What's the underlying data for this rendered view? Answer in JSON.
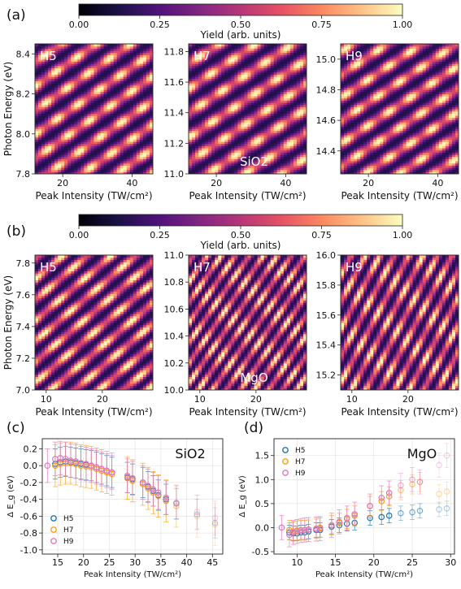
{
  "colors": {
    "H5": "#1f77b4",
    "H7": "#ff9f0e",
    "H9": "#e377c2",
    "colormap": [
      "#000004",
      "#1d1147",
      "#51127c",
      "#822681",
      "#b63679",
      "#e65164",
      "#fb8861",
      "#fec287",
      "#fcfdbf"
    ]
  },
  "chart_data": [
    {
      "id": "a",
      "panel_label": "(a)",
      "type": "heatmap",
      "colorbar": {
        "label": "Yield (arb. units)",
        "ticks": [
          "0.00",
          "0.25",
          "0.50",
          "0.75",
          "1.00"
        ],
        "range": [
          0,
          1
        ],
        "colormap": "magma"
      },
      "material": "SiO2",
      "subplots": [
        {
          "name": "H5",
          "xlim": [
            12,
            46
          ],
          "ylim": [
            7.8,
            8.45
          ],
          "xticks": [
            20,
            40
          ],
          "yticks": [
            7.8,
            8.0,
            8.2,
            8.4
          ],
          "ylabel": "Photon Energy (eV)",
          "xlabel": "Peak Intensity (TW/cm²)",
          "fringes": {
            "start": 7.88,
            "spacing": 0.12,
            "slope": 0.0012
          }
        },
        {
          "name": "H7",
          "xlim": [
            12,
            46
          ],
          "ylim": [
            11.0,
            11.85
          ],
          "xticks": [
            20,
            40
          ],
          "yticks": [
            11.0,
            11.2,
            11.4,
            11.6,
            11.8
          ],
          "xlabel": "Peak Intensity (TW/cm²)",
          "fringes": {
            "start": 11.08,
            "spacing": 0.16,
            "slope": 0.0015
          }
        },
        {
          "name": "H9",
          "xlim": [
            12,
            46
          ],
          "ylim": [
            14.25,
            15.1
          ],
          "xticks": [
            20,
            40
          ],
          "yticks": [
            14.4,
            14.6,
            14.8,
            15.0
          ],
          "xlabel": "Peak Intensity (TW/cm²)",
          "fringes": {
            "start": 14.3,
            "spacing": 0.15,
            "slope": 0.0015
          }
        }
      ]
    },
    {
      "id": "b",
      "panel_label": "(b)",
      "type": "heatmap",
      "colorbar": {
        "label": "Yield (arb. units)",
        "ticks": [
          "0.00",
          "0.25",
          "0.50",
          "0.75",
          "1.00"
        ],
        "range": [
          0,
          1
        ],
        "colormap": "magma"
      },
      "material": "MgO",
      "subplots": [
        {
          "name": "H5",
          "xlim": [
            8,
            29
          ],
          "ylim": [
            7.0,
            7.85
          ],
          "xticks": [
            10,
            20
          ],
          "yticks": [
            7.0,
            7.2,
            7.4,
            7.6,
            7.8
          ],
          "ylabel": "Photon Energy (eV)",
          "xlabel": "Peak Intensity (TW/cm²)",
          "fringes": {
            "start": 7.05,
            "spacing": 0.13,
            "slope": 0.003
          }
        },
        {
          "name": "H7",
          "xlim": [
            8,
            29
          ],
          "ylim": [
            10.0,
            11.0
          ],
          "xticks": [
            10,
            20
          ],
          "yticks": [
            10.0,
            10.2,
            10.4,
            10.6,
            10.8,
            11.0
          ],
          "xlabel": "Peak Intensity (TW/cm²)",
          "fringes": {
            "start": 10.05,
            "spacing": 0.15,
            "slope": 0.006
          }
        },
        {
          "name": "H9",
          "xlim": [
            8,
            29
          ],
          "ylim": [
            15.1,
            16.0
          ],
          "xticks": [
            10,
            20
          ],
          "yticks": [
            15.2,
            15.4,
            15.6,
            15.8,
            16.0
          ],
          "xlabel": "Peak Intensity (TW/cm²)",
          "fringes": {
            "start": 15.15,
            "spacing": 0.18,
            "slope": 0.007
          }
        }
      ]
    },
    {
      "id": "c",
      "panel_label": "(c)",
      "type": "scatter",
      "title": "SiO2",
      "xlabel": "Peak Intensity (TW/cm²)",
      "ylabel": "Δ E_g (eV)",
      "xlim": [
        12,
        47
      ],
      "ylim": [
        -1.05,
        0.32
      ],
      "xticks": [
        15,
        20,
        25,
        30,
        35,
        40,
        45
      ],
      "yticks": [
        -1.0,
        -0.8,
        -0.6,
        -0.4,
        -0.2,
        0.0,
        0.2
      ],
      "grid": true,
      "legend_position": "lower-left",
      "series": [
        {
          "name": "H5",
          "err": 0.18,
          "x": [
            14.5,
            15.5,
            16.5,
            17.5,
            18.5,
            19.5,
            20.5,
            21.5,
            22.5,
            23.5,
            24.5,
            25.5,
            28.5,
            29.5,
            31.5,
            32.5,
            33.5,
            34.5,
            36,
            38,
            42,
            45.5
          ],
          "y": [
            0.02,
            0.04,
            0.05,
            0.04,
            0.03,
            0.02,
            0.01,
            0.0,
            -0.02,
            -0.04,
            -0.06,
            -0.08,
            -0.14,
            -0.16,
            -0.2,
            -0.25,
            -0.3,
            -0.35,
            -0.4,
            -0.45,
            -0.58,
            -0.68
          ]
        },
        {
          "name": "H7",
          "err": 0.25,
          "x": [
            14.5,
            15.5,
            16.5,
            17.5,
            18.5,
            19.5,
            20.5,
            21.5,
            22.5,
            23.5,
            24.5,
            25.5,
            28.5,
            29.5,
            31.5,
            32.5,
            33.5,
            34.5,
            36,
            38,
            42,
            45.5
          ],
          "y": [
            0.0,
            0.02,
            0.03,
            0.03,
            0.02,
            0.0,
            -0.01,
            -0.02,
            -0.04,
            -0.06,
            -0.08,
            -0.1,
            -0.15,
            -0.18,
            -0.22,
            -0.27,
            -0.32,
            -0.36,
            -0.42,
            -0.48,
            -0.6,
            -0.7
          ]
        },
        {
          "name": "H9",
          "err": 0.2,
          "x": [
            13,
            14.5,
            15.5,
            16.5,
            17.5,
            18.5,
            19.5,
            20.5,
            21.5,
            22.5,
            23.5,
            24.5,
            25.5,
            28.5,
            29.5,
            31.5,
            32.5,
            33.5,
            34.5,
            36,
            38,
            42,
            45.5
          ],
          "y": [
            0.0,
            0.08,
            0.09,
            0.08,
            0.06,
            0.05,
            0.03,
            0.02,
            0.0,
            -0.02,
            -0.04,
            -0.06,
            -0.08,
            -0.12,
            -0.15,
            -0.2,
            -0.24,
            -0.28,
            -0.32,
            -0.38,
            -0.44,
            -0.55,
            -0.62
          ]
        }
      ]
    },
    {
      "id": "d",
      "panel_label": "(d)",
      "type": "scatter",
      "title": "MgO",
      "xlabel": "Peak Intensity (TW/cm²)",
      "ylabel": "Δ E_g (eV)",
      "xlim": [
        7,
        30.5
      ],
      "ylim": [
        -0.55,
        1.85
      ],
      "xticks": [
        10,
        15,
        20,
        25,
        30
      ],
      "yticks": [
        -0.5,
        0.0,
        0.5,
        1.0,
        1.5
      ],
      "grid": true,
      "legend_position": "upper-left",
      "series": [
        {
          "name": "H5",
          "err": 0.15,
          "x": [
            9,
            9.5,
            10,
            10.5,
            11,
            11.5,
            12.5,
            13,
            14.5,
            15.5,
            16.5,
            17.5,
            19.5,
            21,
            22,
            23.5,
            25,
            26,
            28.5,
            29.5
          ],
          "y": [
            -0.1,
            -0.12,
            -0.12,
            -0.1,
            -0.1,
            -0.08,
            -0.05,
            -0.05,
            0.02,
            0.05,
            0.08,
            0.1,
            0.2,
            0.22,
            0.25,
            0.3,
            0.32,
            0.35,
            0.38,
            0.4
          ]
        },
        {
          "name": "H7",
          "err": 0.2,
          "x": [
            9,
            9.5,
            10,
            10.5,
            11,
            11.5,
            12.5,
            13,
            14.5,
            15.5,
            16.5,
            17.5,
            19.5,
            21,
            22,
            23.5,
            25,
            26,
            28.5,
            29.5
          ],
          "y": [
            -0.05,
            -0.08,
            -0.06,
            -0.05,
            -0.05,
            -0.04,
            -0.02,
            0.0,
            0.05,
            0.1,
            0.18,
            0.25,
            0.45,
            0.55,
            0.65,
            0.78,
            0.9,
            0.95,
            0.7,
            0.75
          ]
        },
        {
          "name": "H9",
          "err": 0.25,
          "x": [
            8,
            9,
            9.5,
            10,
            10.5,
            11,
            11.5,
            12.5,
            13,
            14.5,
            15.5,
            16.5,
            17.5,
            19.5,
            21,
            22,
            23.5,
            25,
            26,
            28.5,
            29.5
          ],
          "y": [
            0.0,
            -0.15,
            -0.1,
            -0.08,
            -0.06,
            -0.05,
            -0.04,
            -0.03,
            -0.02,
            0.05,
            0.12,
            0.2,
            0.28,
            0.45,
            0.62,
            0.72,
            0.88,
            1.0,
            0.95,
            1.3,
            1.5
          ]
        }
      ]
    }
  ]
}
